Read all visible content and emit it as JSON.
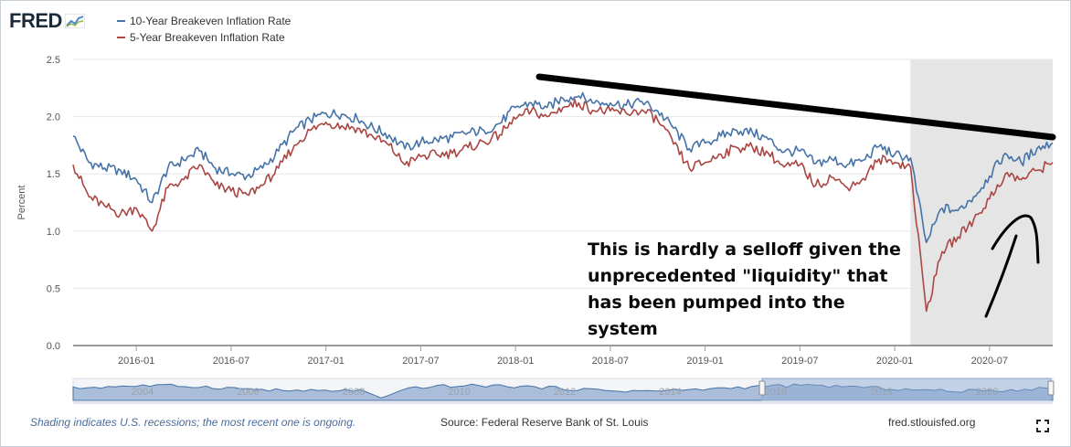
{
  "logo": {
    "text": "FRED"
  },
  "legend": [
    {
      "label": "10-Year Breakeven Inflation Rate",
      "color": "#4572a7"
    },
    {
      "label": "5-Year Breakeven Inflation Rate",
      "color": "#aa4643"
    }
  ],
  "annotation": {
    "text": "This is hardly a selloff given the unprecedented \"liquidity\" that has been pumped into the system"
  },
  "footer": {
    "note": "Shading indicates U.S. recessions; the most recent one is ongoing.",
    "source": "Source: Federal Reserve Bank of St. Louis",
    "site": "fred.stlouisfed.org"
  },
  "colors": {
    "recession": "#e5e5e5",
    "navigator": "#4572a7",
    "plot_bg": "#ffffff"
  },
  "chart_data": {
    "type": "line",
    "title": "",
    "xlabel": "",
    "ylabel": "Percent",
    "ylim": [
      0.0,
      2.5
    ],
    "yticks": [
      "0.0",
      "0.5",
      "1.0",
      "1.5",
      "2.0",
      "2.5"
    ],
    "xlim": [
      "2015-09",
      "2020-11"
    ],
    "xticks": [
      "2016-01",
      "2016-07",
      "2017-01",
      "2017-07",
      "2018-01",
      "2018-07",
      "2019-01",
      "2019-07",
      "2020-01",
      "2020-07"
    ],
    "grid": true,
    "recession": {
      "start": "2020-02",
      "end": "2020-11"
    },
    "x": [
      "2015-09",
      "2015-10",
      "2015-11",
      "2015-12",
      "2016-01",
      "2016-02",
      "2016-03",
      "2016-04",
      "2016-05",
      "2016-06",
      "2016-07",
      "2016-08",
      "2016-09",
      "2016-10",
      "2016-11",
      "2016-12",
      "2017-01",
      "2017-02",
      "2017-03",
      "2017-04",
      "2017-05",
      "2017-06",
      "2017-07",
      "2017-08",
      "2017-09",
      "2017-10",
      "2017-11",
      "2017-12",
      "2018-01",
      "2018-02",
      "2018-03",
      "2018-04",
      "2018-05",
      "2018-06",
      "2018-07",
      "2018-08",
      "2018-09",
      "2018-10",
      "2018-11",
      "2018-12",
      "2019-01",
      "2019-02",
      "2019-03",
      "2019-04",
      "2019-05",
      "2019-06",
      "2019-07",
      "2019-08",
      "2019-09",
      "2019-10",
      "2019-11",
      "2019-12",
      "2020-01",
      "2020-02",
      "2020-03",
      "2020-04",
      "2020-05",
      "2020-06",
      "2020-07",
      "2020-08",
      "2020-09",
      "2020-10",
      "2020-11"
    ],
    "series": [
      {
        "name": "10-Year Breakeven Inflation Rate",
        "color": "#4572a7",
        "values": [
          1.83,
          1.6,
          1.55,
          1.53,
          1.45,
          1.25,
          1.55,
          1.62,
          1.7,
          1.55,
          1.5,
          1.48,
          1.55,
          1.7,
          1.88,
          1.97,
          2.03,
          2.02,
          1.98,
          1.9,
          1.84,
          1.72,
          1.78,
          1.8,
          1.82,
          1.86,
          1.88,
          1.94,
          2.08,
          2.12,
          2.08,
          2.16,
          2.18,
          2.12,
          2.12,
          2.1,
          2.13,
          2.05,
          1.9,
          1.72,
          1.77,
          1.83,
          1.88,
          1.86,
          1.8,
          1.69,
          1.7,
          1.59,
          1.63,
          1.58,
          1.62,
          1.74,
          1.67,
          1.64,
          0.9,
          1.2,
          1.18,
          1.3,
          1.48,
          1.68,
          1.6,
          1.72,
          1.77
        ]
      },
      {
        "name": "5-Year Breakeven Inflation Rate",
        "color": "#aa4643",
        "values": [
          1.58,
          1.3,
          1.22,
          1.15,
          1.2,
          1.0,
          1.38,
          1.45,
          1.58,
          1.4,
          1.35,
          1.32,
          1.4,
          1.55,
          1.75,
          1.88,
          1.95,
          1.92,
          1.9,
          1.82,
          1.75,
          1.58,
          1.65,
          1.67,
          1.68,
          1.73,
          1.78,
          1.84,
          1.98,
          2.05,
          2.0,
          2.08,
          2.12,
          2.05,
          2.05,
          2.03,
          2.06,
          1.97,
          1.76,
          1.55,
          1.6,
          1.67,
          1.73,
          1.73,
          1.68,
          1.56,
          1.58,
          1.4,
          1.47,
          1.38,
          1.46,
          1.63,
          1.6,
          1.56,
          0.3,
          0.82,
          0.95,
          1.1,
          1.28,
          1.5,
          1.45,
          1.53,
          1.6
        ]
      }
    ],
    "navigator": {
      "labels": [
        "2004",
        "2006",
        "2008",
        "2010",
        "2012",
        "2014",
        "2016",
        "2018",
        "2020"
      ]
    }
  }
}
